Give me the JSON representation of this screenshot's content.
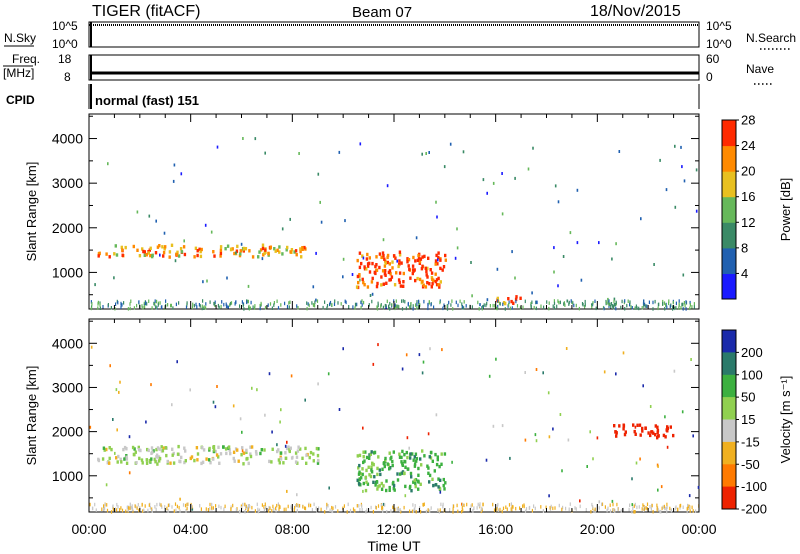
{
  "header": {
    "station": "TIGER (fitACF)",
    "beam": "Beam 07",
    "date": "18/Nov/2015"
  },
  "strips": {
    "nsky": {
      "label": "N.Sky",
      "ticks_left": [
        "10^5",
        "10^0"
      ],
      "ticks_right": [
        "10^5",
        "10^0"
      ],
      "right_label": "N.Search"
    },
    "freq": {
      "label_line1": "Freq.",
      "label_line2": "[MHz]",
      "ticks_left": [
        "18",
        "8"
      ],
      "ticks_right": [
        "60",
        "0"
      ],
      "right_label": "Nave"
    },
    "cpid": {
      "label": "CPID",
      "value": "normal (fast) 151"
    }
  },
  "chart_data": [
    {
      "type": "heatmap",
      "name": "power",
      "ylabel": "Slant Range [km]",
      "yticks": [
        1000,
        2000,
        3000,
        4000
      ],
      "ylim": [
        180,
        4550
      ],
      "colorbar": {
        "label": "Power [dB]",
        "ticks": [
          4,
          8,
          12,
          16,
          20,
          24,
          28
        ],
        "colors": [
          "#1a1aff",
          "#2060b0",
          "#3a8a66",
          "#66b85a",
          "#e8c020",
          "#ff8a00",
          "#ff2a00"
        ]
      },
      "features": [
        {
          "t0": 0.3,
          "t1": 8.5,
          "r0": 1380,
          "r1": 1650,
          "level": 22
        },
        {
          "t0": 10.5,
          "t1": 14,
          "r0": 700,
          "r1": 1500,
          "level": 28
        },
        {
          "t0": 16,
          "t1": 17,
          "r0": 300,
          "r1": 500,
          "level": 24
        }
      ]
    },
    {
      "type": "heatmap",
      "name": "velocity",
      "ylabel": "Slant Range [km]",
      "yticks": [
        1000,
        2000,
        3000,
        4000
      ],
      "ylim": [
        180,
        4550
      ],
      "colorbar": {
        "label": "Velocity [m s⁻¹]",
        "ticks": [
          200,
          100,
          50,
          15,
          -15,
          -50,
          -100,
          -200
        ],
        "colors": [
          "#1a2aaa",
          "#2a7a6a",
          "#3cb040",
          "#90d050",
          "#c8c8c8",
          "#f0b020",
          "#ff7a00",
          "#ee2200"
        ]
      },
      "features": [
        {
          "t0": 0.3,
          "t1": 9,
          "r0": 1300,
          "r1": 1700,
          "level": 0
        },
        {
          "t0": 10.5,
          "t1": 14,
          "r0": 700,
          "r1": 1600,
          "level": 50
        },
        {
          "t0": 20.5,
          "t1": 23,
          "r0": 1900,
          "r1": 2200,
          "level": -200
        }
      ]
    }
  ],
  "time_axis": {
    "label": "Time UT",
    "ticks": [
      "00:00",
      "04:00",
      "08:00",
      "12:00",
      "16:00",
      "20:00",
      "00:00"
    ]
  }
}
